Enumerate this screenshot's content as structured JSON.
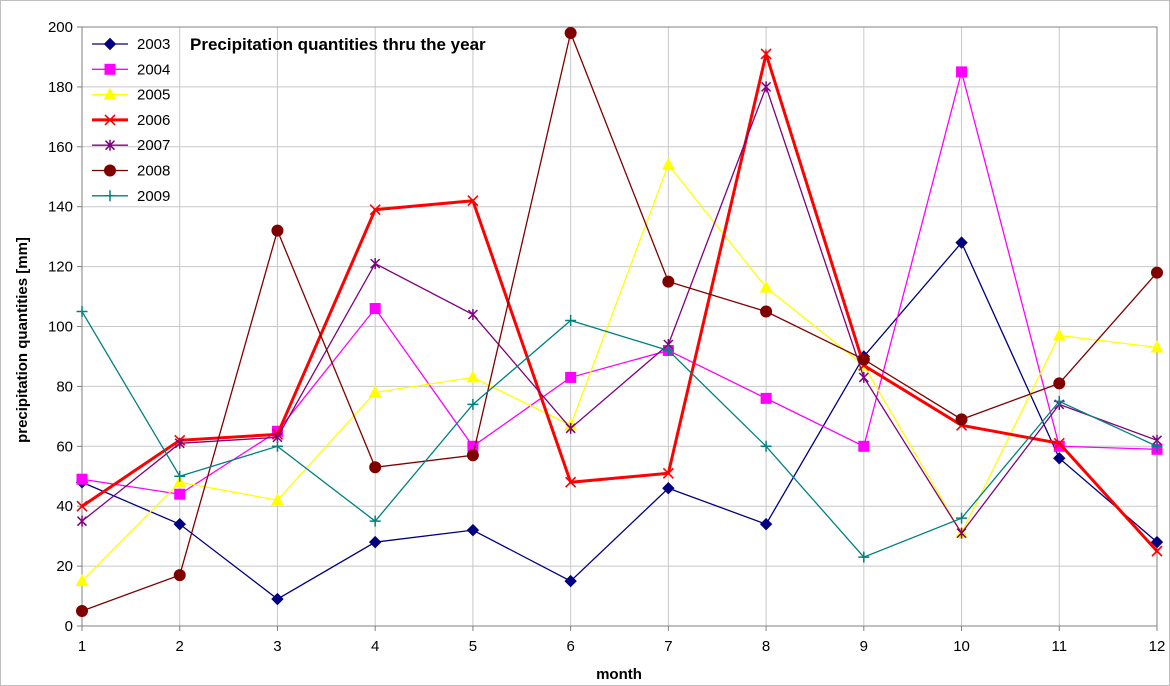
{
  "chart_data": {
    "type": "line",
    "title": "Precipitation quantities thru the year",
    "xlabel": "month",
    "ylabel": "precipitation quantities [mm]",
    "x": [
      1,
      2,
      3,
      4,
      5,
      6,
      7,
      8,
      9,
      10,
      11,
      12
    ],
    "xlim": [
      1,
      12
    ],
    "ylim": [
      0,
      200
    ],
    "yticks": [
      0,
      20,
      40,
      60,
      80,
      100,
      120,
      140,
      160,
      180,
      200
    ],
    "grid": true,
    "legend_position": "top-left",
    "series": [
      {
        "name": "2003",
        "color": "#000080",
        "marker": "diamond",
        "values": [
          48,
          34,
          9,
          28,
          32,
          15,
          46,
          34,
          90,
          128,
          56,
          28
        ]
      },
      {
        "name": "2004",
        "color": "#FF00FF",
        "marker": "square",
        "values": [
          49,
          44,
          65,
          106,
          60,
          83,
          92,
          76,
          60,
          185,
          60,
          59
        ]
      },
      {
        "name": "2005",
        "color": "#FFFF00",
        "marker": "triangle",
        "values": [
          15,
          48,
          42,
          78,
          83,
          67,
          154,
          113,
          87,
          31,
          97,
          93
        ]
      },
      {
        "name": "2006",
        "color": "#FF0000",
        "marker": "x",
        "values": [
          40,
          62,
          64,
          139,
          142,
          48,
          51,
          191,
          87,
          67,
          61,
          25
        ]
      },
      {
        "name": "2007",
        "color": "#800080",
        "marker": "star",
        "values": [
          35,
          61,
          63,
          121,
          104,
          66,
          94,
          180,
          83,
          31,
          74,
          62
        ]
      },
      {
        "name": "2008",
        "color": "#800000",
        "marker": "circle",
        "values": [
          5,
          17,
          132,
          53,
          57,
          198,
          115,
          105,
          89,
          69,
          81,
          118
        ]
      },
      {
        "name": "2009",
        "color": "#008080",
        "marker": "plus",
        "values": [
          105,
          50,
          60,
          35,
          74,
          102,
          92,
          60,
          23,
          36,
          75,
          60
        ]
      }
    ]
  }
}
